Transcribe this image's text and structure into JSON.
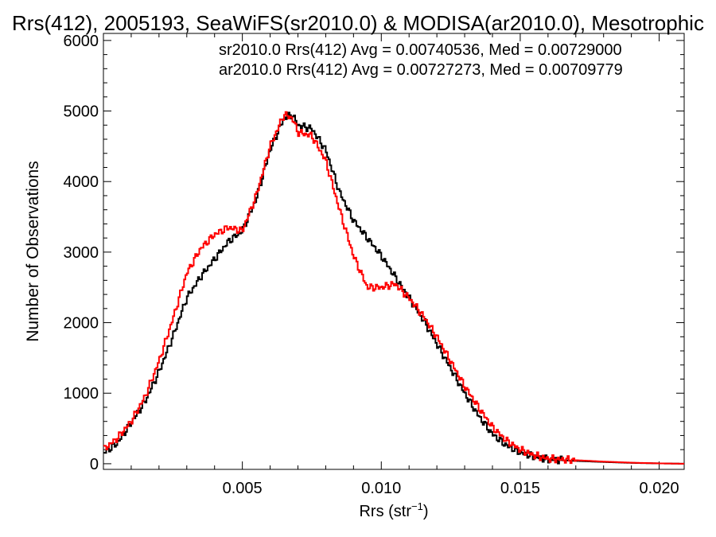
{
  "chart_data": {
    "type": "line",
    "title": "Rrs(412), 2005193, SeaWiFS(sr2010.0) & MODISA(ar2010.0), Mesotrophic",
    "xlabel": "Rrs (str",
    "xlabel_superscript": "−1",
    "xlabel_close": ")",
    "ylabel": "Number of Observations",
    "xlim": [
      0.0,
      0.0209
    ],
    "ylim": [
      -80,
      6100
    ],
    "x_ticks": [
      0.005,
      0.01,
      0.015,
      0.02
    ],
    "x_tick_labels": [
      "0.005",
      "0.010",
      "0.015",
      "0.020"
    ],
    "y_ticks": [
      0,
      1000,
      2000,
      3000,
      4000,
      5000,
      6000
    ],
    "y_tick_labels": [
      "0",
      "1000",
      "2000",
      "3000",
      "4000",
      "5000",
      "6000"
    ],
    "grid": false,
    "legend_position": "top-right",
    "series": [
      {
        "name": "sr2010.0 Rrs(412) Avg = 0.00740536, Med = 0.00729000",
        "color": "#000000",
        "x": [
          0.0,
          0.0005,
          0.001,
          0.0015,
          0.002,
          0.0025,
          0.003,
          0.0035,
          0.004,
          0.0045,
          0.005,
          0.0055,
          0.006,
          0.0065,
          0.0068,
          0.007,
          0.0075,
          0.008,
          0.0085,
          0.009,
          0.0095,
          0.01,
          0.0105,
          0.011,
          0.0115,
          0.012,
          0.0125,
          0.013,
          0.0135,
          0.014,
          0.0145,
          0.015,
          0.0155,
          0.016,
          0.017,
          0.018,
          0.019,
          0.02,
          0.0209
        ],
        "y": [
          150,
          290,
          580,
          880,
          1300,
          1800,
          2350,
          2650,
          2900,
          3150,
          3300,
          3750,
          4450,
          4900,
          4950,
          4800,
          4750,
          4450,
          3850,
          3450,
          3200,
          2950,
          2650,
          2350,
          2050,
          1700,
          1350,
          1000,
          680,
          420,
          260,
          160,
          100,
          60,
          40,
          25,
          12,
          5,
          0
        ]
      },
      {
        "name": "ar2010.0 Rrs(412) Avg = 0.00727273, Med = 0.00709779",
        "color": "#ff0000",
        "x": [
          0.0,
          0.0005,
          0.001,
          0.0015,
          0.002,
          0.0025,
          0.003,
          0.0035,
          0.004,
          0.0045,
          0.005,
          0.0055,
          0.006,
          0.0065,
          0.0068,
          0.007,
          0.0075,
          0.008,
          0.0085,
          0.009,
          0.0095,
          0.01,
          0.0105,
          0.011,
          0.0115,
          0.012,
          0.0125,
          0.013,
          0.0135,
          0.014,
          0.0145,
          0.015,
          0.0155,
          0.016,
          0.017,
          0.018,
          0.019,
          0.02,
          0.0209
        ],
        "y": [
          200,
          360,
          600,
          950,
          1450,
          2050,
          2700,
          3050,
          3250,
          3350,
          3300,
          3800,
          4500,
          4950,
          4900,
          4700,
          4650,
          4300,
          3600,
          2950,
          2500,
          2500,
          2550,
          2350,
          2100,
          1800,
          1450,
          1100,
          800,
          520,
          330,
          200,
          120,
          70,
          50,
          30,
          15,
          5,
          0
        ]
      }
    ]
  }
}
